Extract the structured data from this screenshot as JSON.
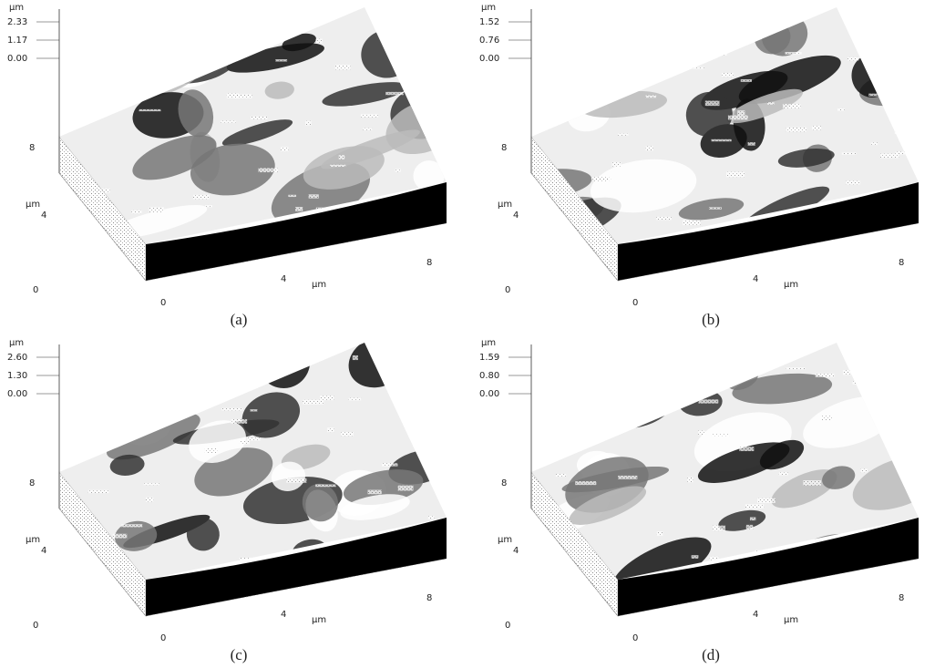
{
  "panels": [
    {
      "caption": "(a)",
      "z_unit": "µm",
      "z_labels": [
        "2.33",
        "1.17",
        "0.00"
      ],
      "y_labels": [
        "8",
        "µm",
        "4",
        "0"
      ],
      "x_labels": [
        "0",
        "4",
        "µm",
        "8"
      ]
    },
    {
      "caption": "(b)",
      "z_unit": "µm",
      "z_labels": [
        "1.52",
        "0.76",
        "0.00"
      ],
      "y_labels": [
        "8",
        "µm",
        "4",
        "0"
      ],
      "x_labels": [
        "0",
        "4",
        "µm",
        "8"
      ]
    },
    {
      "caption": "(c)",
      "z_unit": "µm",
      "z_labels": [
        "2.60",
        "1.30",
        "0.00"
      ],
      "y_labels": [
        "8",
        "µm",
        "4",
        "0"
      ],
      "x_labels": [
        "0",
        "4",
        "µm",
        "8"
      ]
    },
    {
      "caption": "(d)",
      "z_unit": "µm",
      "z_labels": [
        "1.59",
        "0.80",
        "0.00"
      ],
      "y_labels": [
        "8",
        "µm",
        "4",
        "0"
      ],
      "x_labels": [
        "0",
        "4",
        "µm",
        "8"
      ]
    }
  ]
}
